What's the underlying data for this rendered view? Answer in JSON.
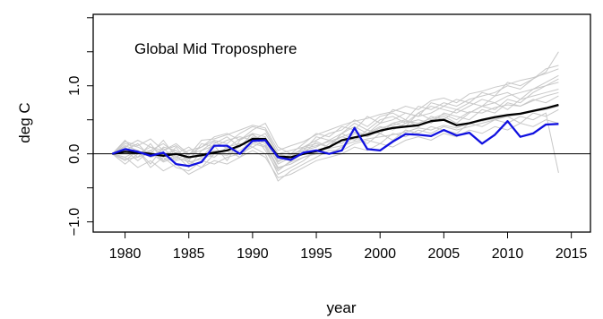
{
  "chart_data": {
    "type": "line",
    "annotation": "Global Mid Troposphere",
    "xlabel": "year",
    "ylabel": "deg C",
    "xlim": [
      1977.5,
      2016.5
    ],
    "ylim": [
      -1.15,
      2.05
    ],
    "xticks": [
      "1980",
      "1985",
      "1990",
      "1995",
      "2000",
      "2005",
      "2010",
      "2015"
    ],
    "xtick_values": [
      1980,
      1985,
      1990,
      1995,
      2000,
      2005,
      2010,
      2015
    ],
    "yticks": [
      "−1.0",
      "0.0",
      "1.0"
    ],
    "ytick_values": [
      -1.0,
      0.0,
      1.0
    ],
    "reference_line_y": 0.0,
    "colors": {
      "models": "#c8c8c8",
      "mean": "#000000",
      "observed": "#1010e0",
      "zero": "#000000"
    },
    "x": [
      1979,
      1980,
      1981,
      1982,
      1983,
      1984,
      1985,
      1986,
      1987,
      1988,
      1989,
      1990,
      1991,
      1992,
      1993,
      1994,
      1995,
      1996,
      1997,
      1998,
      1999,
      2000,
      2001,
      2002,
      2003,
      2004,
      2005,
      2006,
      2007,
      2008,
      2009,
      2010,
      2011,
      2012,
      2013,
      2014
    ],
    "series": [
      {
        "role": "mean",
        "values": [
          0.0,
          0.03,
          0.02,
          0.0,
          -0.03,
          0.0,
          -0.05,
          -0.02,
          0.02,
          0.05,
          0.12,
          0.22,
          0.22,
          -0.04,
          -0.05,
          0.0,
          0.04,
          0.1,
          0.2,
          0.24,
          0.28,
          0.34,
          0.38,
          0.4,
          0.42,
          0.48,
          0.5,
          0.42,
          0.45,
          0.5,
          0.54,
          0.57,
          0.59,
          0.63,
          0.67,
          0.72
        ]
      },
      {
        "role": "observed",
        "values": [
          0.0,
          0.07,
          0.03,
          -0.03,
          0.02,
          -0.15,
          -0.18,
          -0.12,
          0.12,
          0.12,
          0.0,
          0.19,
          0.2,
          -0.05,
          -0.09,
          0.02,
          0.05,
          0.0,
          0.05,
          0.38,
          0.07,
          0.05,
          0.18,
          0.29,
          0.28,
          0.26,
          0.35,
          0.27,
          0.31,
          0.15,
          0.28,
          0.48,
          0.25,
          0.3,
          0.43,
          0.44
        ]
      },
      {
        "role": "model",
        "values": [
          0.0,
          0.1,
          -0.05,
          0.15,
          -0.1,
          -0.02,
          -0.2,
          0.05,
          0.12,
          -0.1,
          0.2,
          0.3,
          0.05,
          -0.25,
          -0.1,
          0.0,
          0.18,
          0.1,
          0.3,
          0.2,
          0.35,
          0.3,
          0.45,
          0.4,
          0.6,
          0.5,
          0.55,
          0.45,
          0.6,
          0.7,
          0.65,
          0.8,
          0.75,
          0.9,
          1.0,
          1.1
        ]
      },
      {
        "role": "model",
        "values": [
          0.0,
          -0.1,
          0.05,
          -0.15,
          0.1,
          0.05,
          -0.1,
          -0.2,
          0.0,
          0.05,
          -0.05,
          0.15,
          0.1,
          -0.3,
          -0.2,
          -0.1,
          0.05,
          0.0,
          0.1,
          0.25,
          0.15,
          0.3,
          0.2,
          0.35,
          0.3,
          0.4,
          0.35,
          0.3,
          0.45,
          0.4,
          0.5,
          0.55,
          0.45,
          0.6,
          0.55,
          0.65
        ]
      },
      {
        "role": "model",
        "values": [
          0.0,
          0.15,
          0.1,
          0.0,
          0.2,
          -0.05,
          0.05,
          0.1,
          0.2,
          0.15,
          0.3,
          0.4,
          0.35,
          0.0,
          0.05,
          0.1,
          0.2,
          0.3,
          0.35,
          0.5,
          0.4,
          0.55,
          0.6,
          0.5,
          0.7,
          0.65,
          0.75,
          0.7,
          0.8,
          0.85,
          0.9,
          1.0,
          0.95,
          1.1,
          1.2,
          1.5
        ]
      },
      {
        "role": "model",
        "values": [
          0.0,
          -0.05,
          -0.2,
          -0.1,
          -0.25,
          -0.15,
          -0.3,
          -0.2,
          -0.1,
          -0.15,
          -0.05,
          0.05,
          -0.05,
          -0.35,
          -0.3,
          -0.2,
          -0.1,
          -0.05,
          0.0,
          0.1,
          0.05,
          0.15,
          0.1,
          0.2,
          0.25,
          0.2,
          0.3,
          0.25,
          0.35,
          0.3,
          0.4,
          0.35,
          0.45,
          0.4,
          0.5,
          0.45
        ]
      },
      {
        "role": "model",
        "values": [
          0.0,
          0.2,
          0.0,
          0.1,
          0.05,
          0.15,
          0.0,
          0.1,
          0.25,
          0.3,
          0.2,
          0.35,
          0.45,
          0.1,
          0.0,
          0.15,
          0.3,
          0.25,
          0.4,
          0.35,
          0.55,
          0.45,
          0.65,
          0.6,
          0.55,
          0.75,
          0.7,
          0.8,
          0.75,
          0.9,
          0.85,
          1.05,
          1.0,
          1.1,
          1.25,
          1.3
        ]
      },
      {
        "role": "model",
        "values": [
          0.0,
          0.05,
          0.15,
          -0.05,
          0.0,
          -0.1,
          -0.05,
          0.0,
          -0.05,
          0.1,
          0.15,
          0.1,
          0.2,
          -0.15,
          -0.05,
          0.05,
          0.1,
          0.2,
          0.15,
          0.3,
          0.25,
          0.35,
          0.45,
          0.5,
          0.4,
          0.55,
          0.5,
          0.65,
          0.6,
          0.7,
          0.75,
          0.65,
          0.8,
          0.85,
          0.9,
          0.95
        ]
      },
      {
        "role": "model",
        "values": [
          0.0,
          -0.15,
          0.0,
          0.05,
          -0.1,
          0.1,
          -0.15,
          -0.05,
          0.05,
          0.0,
          0.1,
          0.25,
          0.15,
          -0.2,
          -0.15,
          -0.05,
          0.0,
          0.15,
          0.25,
          0.2,
          0.3,
          0.4,
          0.35,
          0.45,
          0.5,
          0.45,
          0.6,
          0.55,
          0.5,
          0.65,
          0.6,
          0.75,
          0.7,
          0.8,
          0.75,
          0.85
        ]
      },
      {
        "role": "model",
        "values": [
          0.0,
          0.1,
          0.2,
          0.1,
          0.0,
          0.05,
          -0.1,
          0.15,
          0.1,
          0.2,
          0.25,
          0.2,
          0.3,
          0.0,
          -0.05,
          0.1,
          0.15,
          0.1,
          0.3,
          0.45,
          0.35,
          0.5,
          0.55,
          0.45,
          0.6,
          0.7,
          0.65,
          0.6,
          0.7,
          0.8,
          0.75,
          0.85,
          0.9,
          0.95,
          1.05,
          1.15
        ]
      },
      {
        "role": "model",
        "values": [
          0.0,
          -0.05,
          0.05,
          -0.2,
          -0.05,
          -0.2,
          -0.25,
          -0.1,
          -0.15,
          -0.05,
          0.0,
          0.1,
          0.0,
          -0.4,
          -0.25,
          -0.15,
          -0.05,
          0.05,
          0.05,
          0.15,
          0.2,
          0.15,
          0.3,
          0.25,
          0.35,
          0.3,
          0.4,
          0.35,
          0.4,
          0.45,
          0.5,
          0.45,
          0.55,
          0.5,
          0.6,
          -0.28
        ]
      },
      {
        "role": "model",
        "values": [
          0.0,
          0.05,
          -0.1,
          0.05,
          0.15,
          0.0,
          0.1,
          -0.05,
          0.15,
          0.25,
          0.1,
          0.3,
          0.25,
          -0.1,
          0.0,
          0.05,
          0.25,
          0.2,
          0.3,
          0.4,
          0.3,
          0.45,
          0.5,
          0.6,
          0.55,
          0.6,
          0.7,
          0.65,
          0.75,
          0.7,
          0.85,
          0.9,
          0.8,
          0.95,
          1.0,
          1.05
        ]
      },
      {
        "role": "model",
        "values": [
          0.0,
          0.12,
          0.05,
          -0.05,
          0.08,
          -0.08,
          0.0,
          0.05,
          0.18,
          0.08,
          0.22,
          0.28,
          0.18,
          -0.12,
          -0.02,
          0.08,
          0.12,
          0.18,
          0.25,
          0.32,
          0.28,
          0.38,
          0.42,
          0.48,
          0.45,
          0.52,
          0.58,
          0.5,
          0.62,
          0.6,
          0.68,
          0.72,
          0.7,
          0.78,
          0.85,
          0.9
        ]
      },
      {
        "role": "model",
        "values": [
          0.0,
          -0.08,
          -0.05,
          0.02,
          -0.12,
          -0.05,
          -0.12,
          -0.08,
          0.0,
          -0.02,
          0.05,
          0.18,
          0.12,
          -0.22,
          -0.12,
          -0.05,
          0.02,
          0.08,
          0.12,
          0.18,
          0.22,
          0.25,
          0.28,
          0.32,
          0.38,
          0.35,
          0.42,
          0.38,
          0.45,
          0.48,
          0.52,
          0.55,
          0.58,
          0.62,
          0.65,
          0.7
        ]
      },
      {
        "role": "model",
        "values": [
          0.0,
          0.18,
          0.12,
          0.22,
          0.05,
          0.12,
          -0.02,
          0.2,
          0.22,
          0.28,
          0.35,
          0.42,
          0.38,
          0.05,
          0.12,
          0.18,
          0.28,
          0.35,
          0.42,
          0.48,
          0.52,
          0.58,
          0.62,
          0.7,
          0.65,
          0.78,
          0.82,
          0.75,
          0.88,
          0.92,
          0.98,
          1.02,
          1.08,
          1.12,
          1.18,
          1.25
        ]
      }
    ]
  }
}
